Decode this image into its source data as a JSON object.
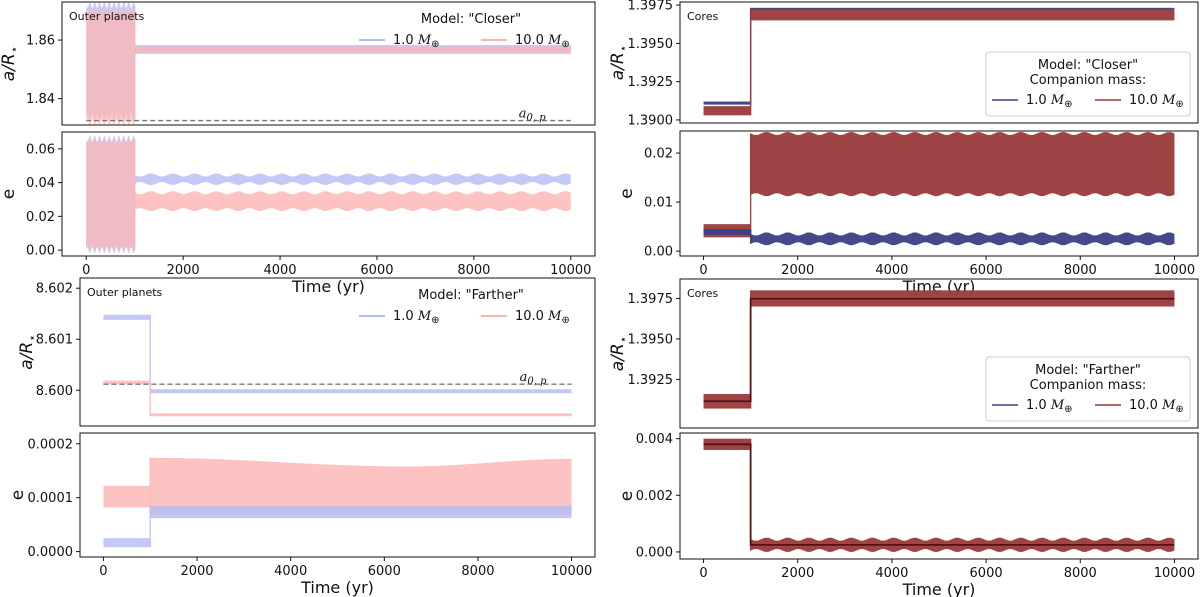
{
  "colors": {
    "light_blue": "#b4bcf4",
    "light_red": "#fdb4b4",
    "overlap": "#d9b4cf",
    "dark_blue": "#3b3f85",
    "dark_red": "#9a3a3a",
    "dashed": "#777777",
    "axis": "#111111"
  },
  "chart_data": [
    {
      "id": "closer-outer-a",
      "type": "line",
      "panel_label": "Outer planets",
      "ylabel": "a/R⋆",
      "xlabel": "",
      "xlim": [
        -500,
        10500
      ],
      "ylim": [
        1.831,
        1.873
      ],
      "yticks": [
        1.84,
        1.86
      ],
      "ytick_labels": [
        "1.84",
        "1.86"
      ],
      "xticks": [],
      "reference_line": {
        "label": "a0, p",
        "y": 1.8325
      },
      "legend": {
        "title": "Model: \"Closer\"",
        "entries": [
          "1.0 M⊕",
          "10.0 M⊕"
        ]
      },
      "series": [
        {
          "name": "1.0 M⊕",
          "color": "light_blue",
          "t_switch": 1000,
          "before": [
            1.834,
            1.872
          ],
          "after": [
            1.8553,
            1.8583
          ]
        },
        {
          "name": "10.0 M⊕",
          "color": "light_red",
          "t_switch": 1000,
          "before": [
            1.832,
            1.87
          ],
          "after": [
            1.8557,
            1.8578
          ]
        }
      ]
    },
    {
      "id": "closer-outer-e",
      "type": "line",
      "panel_label": "",
      "ylabel": "e",
      "xlabel": "Time (yr)",
      "xlim": [
        -500,
        10500
      ],
      "ylim": [
        -0.0035,
        0.07
      ],
      "yticks": [
        0.0,
        0.02,
        0.04,
        0.06
      ],
      "ytick_labels": [
        "0.00",
        "0.02",
        "0.04",
        "0.06"
      ],
      "xticks": [
        0,
        2000,
        4000,
        6000,
        8000,
        10000
      ],
      "xtick_labels": [
        "0",
        "2000",
        "4000",
        "6000",
        "8000",
        "10000"
      ],
      "series": [
        {
          "name": "1.0 M⊕",
          "color": "light_blue",
          "t_switch": 1000,
          "before": [
            0.0,
            0.066
          ],
          "after": [
            0.0395,
            0.0445
          ]
        },
        {
          "name": "10.0 M⊕",
          "color": "light_red",
          "t_switch": 1000,
          "before": [
            0.001,
            0.065
          ],
          "after": [
            0.024,
            0.034
          ]
        }
      ]
    },
    {
      "id": "closer-cores-a",
      "type": "line",
      "panel_label": "Cores",
      "ylabel": "a/R⋆",
      "xlabel": "",
      "xlim": [
        -500,
        10500
      ],
      "ylim": [
        1.3898,
        1.3977
      ],
      "yticks": [
        1.39,
        1.3925,
        1.395,
        1.3975
      ],
      "ytick_labels": [
        "1.3900",
        "1.3925",
        "1.3950",
        "1.3975"
      ],
      "xticks": [],
      "legend": {
        "title": "Model: \"Closer\"",
        "subtitle": "Companion mass:",
        "entries": [
          "1.0 M⊕",
          "10.0 M⊕"
        ]
      },
      "series": [
        {
          "name": "1.0 M⊕",
          "color": "dark_blue",
          "t_switch": 1000,
          "before": [
            1.391,
            1.3912
          ],
          "after": [
            1.39718,
            1.39732
          ]
        },
        {
          "name": "10.0 M⊕",
          "color": "dark_red",
          "t_switch": 1000,
          "before": [
            1.3903,
            1.3909
          ],
          "after": [
            1.3965,
            1.3972
          ]
        }
      ]
    },
    {
      "id": "closer-cores-e",
      "type": "line",
      "panel_label": "",
      "ylabel": "e",
      "xlabel": "Time (yr)",
      "xlim": [
        -500,
        10500
      ],
      "ylim": [
        -0.001,
        0.0245
      ],
      "yticks": [
        0.0,
        0.01,
        0.02
      ],
      "ytick_labels": [
        "0.00",
        "0.01",
        "0.02"
      ],
      "xticks": [
        0,
        2000,
        4000,
        6000,
        8000,
        10000
      ],
      "xtick_labels": [
        "0",
        "2000",
        "4000",
        "6000",
        "8000",
        "10000"
      ],
      "series": [
        {
          "name": "10.0 M⊕",
          "color": "dark_red",
          "t_switch": 1000,
          "before": [
            0.0028,
            0.0055
          ],
          "after": [
            0.0115,
            0.024
          ]
        },
        {
          "name": "1.0 M⊕",
          "color": "dark_blue",
          "t_switch": 1000,
          "before": [
            0.0033,
            0.0045
          ],
          "after": [
            0.0015,
            0.0035
          ]
        }
      ]
    },
    {
      "id": "farther-outer-a",
      "type": "line",
      "panel_label": "Outer planets",
      "ylabel": "a/R⋆",
      "xlabel": "",
      "xlim": [
        -500,
        10500
      ],
      "ylim": [
        8.5993,
        8.6022
      ],
      "yticks": [
        8.6,
        8.601,
        8.602
      ],
      "ytick_labels": [
        "8.600",
        "8.601",
        "8.602"
      ],
      "xticks": [],
      "reference_line": {
        "label": "a0, p",
        "y": 8.60012
      },
      "legend": {
        "title": "Model: \"Farther\"",
        "entries": [
          "1.0 M⊕",
          "10.0 M⊕"
        ]
      },
      "series": [
        {
          "name": "1.0 M⊕",
          "color": "light_blue",
          "t_switch": 1000,
          "before": [
            8.60138,
            8.60148
          ],
          "after": [
            8.59994,
            8.60002
          ]
        },
        {
          "name": "10.0 M⊕",
          "color": "light_red",
          "t_switch": 1000,
          "before": [
            8.60012,
            8.60019
          ],
          "after": [
            8.59949,
            8.59955
          ]
        }
      ]
    },
    {
      "id": "farther-outer-e",
      "type": "line",
      "panel_label": "",
      "ylabel": "e",
      "xlabel": "Time (yr)",
      "xlim": [
        -500,
        10500
      ],
      "ylim": [
        -1e-05,
        0.00022
      ],
      "yticks": [
        0.0,
        0.0001,
        0.0002
      ],
      "ytick_labels": [
        "0.0000",
        "0.0001",
        "0.0002"
      ],
      "xticks": [
        0,
        2000,
        4000,
        6000,
        8000,
        10000
      ],
      "xtick_labels": [
        "0",
        "2000",
        "4000",
        "6000",
        "8000",
        "10000"
      ],
      "series": [
        {
          "name": "10.0 M⊕",
          "color": "light_red",
          "t_switch": 1000,
          "before": [
            8.2e-05,
            0.000122
          ],
          "after_low": 6.85e-05,
          "after_high": [
            [
              1000,
              0.000174
            ],
            [
              6500,
              0.000158
            ],
            [
              10000,
              0.000172
            ]
          ]
        },
        {
          "name": "1.0 M⊕",
          "color": "light_blue",
          "t_switch": 1000,
          "before": [
            8e-06,
            2.5e-05
          ],
          "after": [
            6.2e-05,
            8.5e-05
          ]
        }
      ]
    },
    {
      "id": "farther-cores-a",
      "type": "line",
      "panel_label": "Cores",
      "ylabel": "a/R⋆",
      "xlabel": "",
      "xlim": [
        -500,
        10500
      ],
      "ylim": [
        1.3895,
        1.3987
      ],
      "yticks": [
        1.3925,
        1.395,
        1.3975
      ],
      "ytick_labels": [
        "1.3925",
        "1.3950",
        "1.3975"
      ],
      "xticks": [],
      "legend": {
        "title": "Model: \"Farther\"",
        "subtitle": "Companion mass:",
        "entries": [
          "1.0 M⊕",
          "10.0 M⊕"
        ]
      },
      "series": [
        {
          "name": "10.0 M⊕",
          "color": "dark_red",
          "t_switch": 1000,
          "before": [
            1.3907,
            1.3916
          ],
          "after": [
            1.397,
            1.398
          ]
        },
        {
          "name": "1.0 M⊕",
          "color": "dark_blue",
          "t_switch": 1000,
          "line_before": 1.39115,
          "line_after": 1.39748
        }
      ]
    },
    {
      "id": "farther-cores-e",
      "type": "line",
      "panel_label": "",
      "ylabel": "e",
      "xlabel": "Time (yr)",
      "xlim": [
        -500,
        10500
      ],
      "ylim": [
        -0.00025,
        0.0042
      ],
      "yticks": [
        0.0,
        0.002,
        0.004
      ],
      "ytick_labels": [
        "0.000",
        "0.002",
        "0.004"
      ],
      "xticks": [
        0,
        2000,
        4000,
        6000,
        8000,
        10000
      ],
      "xtick_labels": [
        "0",
        "2000",
        "4000",
        "6000",
        "8000",
        "10000"
      ],
      "series": [
        {
          "name": "10.0 M⊕",
          "color": "dark_red",
          "t_switch": 1000,
          "before": [
            0.0036,
            0.004
          ],
          "after": [
            5e-05,
            0.00045
          ]
        },
        {
          "name": "1.0 M⊕",
          "color": "dark_blue",
          "t_switch": 1000,
          "line_before": 0.0038,
          "line_after": 0.00025
        }
      ]
    }
  ]
}
